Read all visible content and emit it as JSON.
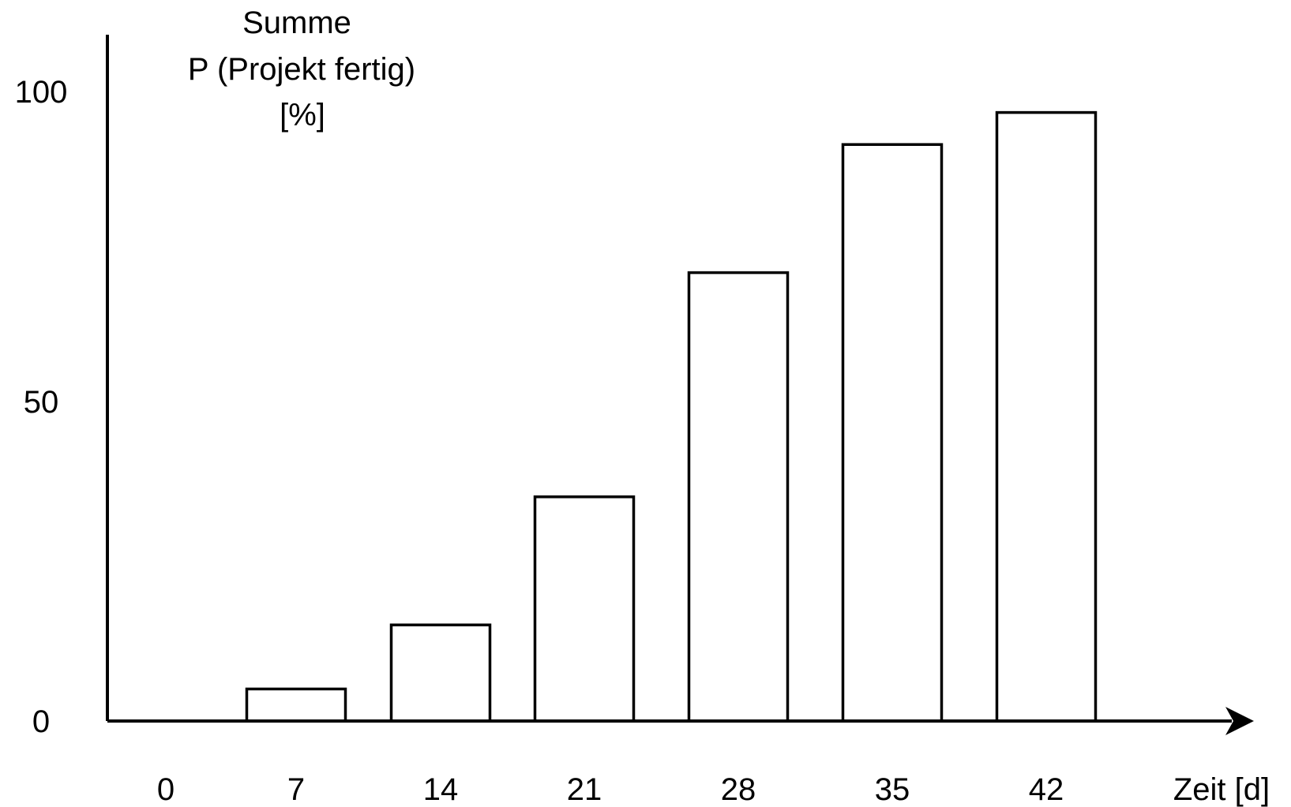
{
  "chart_data": {
    "type": "bar",
    "ylabel_lines": [
      "Summe",
      "P (Projekt fertig)",
      "[%]"
    ],
    "xlabel": "Zeit [d]",
    "categories": [
      "0",
      "7",
      "14",
      "21",
      "28",
      "35",
      "42"
    ],
    "values": [
      0,
      5,
      15,
      35,
      70,
      90,
      95
    ],
    "yticks": [
      "0",
      "50",
      "100"
    ],
    "ylim": [
      0,
      100
    ],
    "grid": false,
    "legend": "none",
    "colors": {
      "bar_fill": "#ffffff",
      "stroke": "#000000"
    }
  }
}
